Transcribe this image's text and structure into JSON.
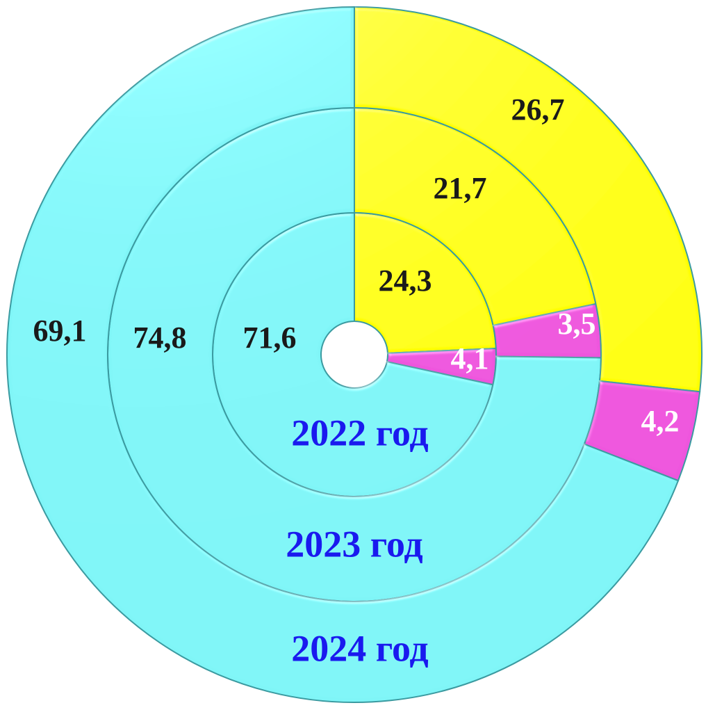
{
  "chart_data": {
    "type": "pie",
    "title": "",
    "colors": {
      "cyan": "#7ff5f7",
      "yellow": "#ffff00",
      "magenta": "#ee55dd",
      "value_text_dark": "#1a1a1a",
      "value_text_light": "#ffffff",
      "ring_label": "#1a1aee",
      "edge": "#3a9aa0"
    },
    "rings": [
      {
        "label": "2022 год",
        "slices": [
          {
            "value": 24.3,
            "display": "24,3",
            "color": "#ffff00"
          },
          {
            "value": 4.1,
            "display": "4,1",
            "color": "#ee55dd"
          },
          {
            "value": 71.6,
            "display": "71,6",
            "color": "#7ff5f7"
          }
        ]
      },
      {
        "label": "2023 год",
        "slices": [
          {
            "value": 21.7,
            "display": "21,7",
            "color": "#ffff00"
          },
          {
            "value": 3.5,
            "display": "3,5",
            "color": "#ee55dd"
          },
          {
            "value": 74.8,
            "display": "74,8",
            "color": "#7ff5f7"
          }
        ]
      },
      {
        "label": "2024 год",
        "slices": [
          {
            "value": 26.7,
            "display": "26,7",
            "color": "#ffff00"
          },
          {
            "value": 4.2,
            "display": "4,2",
            "color": "#ee55dd"
          },
          {
            "value": 69.1,
            "display": "69,1",
            "color": "#7ff5f7"
          }
        ]
      }
    ]
  }
}
